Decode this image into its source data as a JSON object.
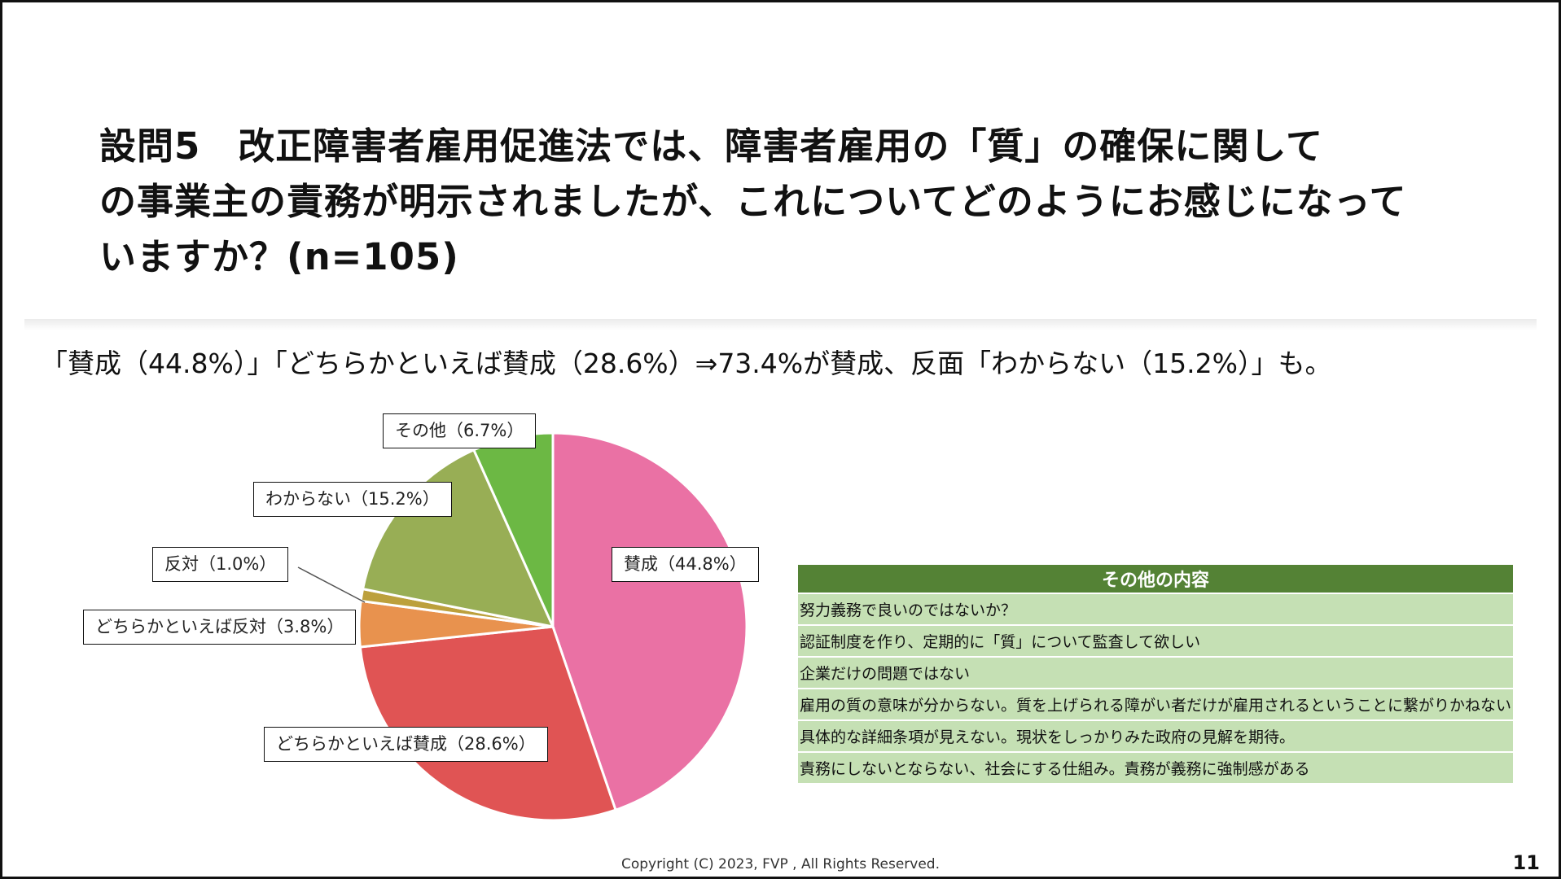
{
  "title_lines": [
    "設問5　改正障害者雇用促進法では、障害者雇用の「質」の確保に関して",
    "の事業主の責務が明示されましたが、これについてどのようにお感じになって",
    "いますか？(n=105)"
  ],
  "summary": "「賛成（44.8%）」「どちらかといえば賛成（28.6%）⇒73.4%が賛成、反面「わからない（15.2%）」も。",
  "colors": {
    "agree": "#ea71a4",
    "somewhat_agree": "#e05454",
    "somewhat_disagree": "#e8924e",
    "disagree": "#bca03c",
    "dont_know": "#98ae55",
    "other": "#6cb844",
    "table_header": "#548235",
    "table_row": "#c5e0b4"
  },
  "chart_data": {
    "type": "pie",
    "title": "",
    "n": 105,
    "slices": [
      {
        "key": "agree",
        "label": "賛成（44.8%）",
        "category": "賛成",
        "value": 44.8,
        "color": "#ea71a4"
      },
      {
        "key": "somewhat_agree",
        "label": "どちらかといえば賛成（28.6%）",
        "category": "どちらかといえば賛成",
        "value": 28.6,
        "color": "#e05454"
      },
      {
        "key": "somewhat_disagree",
        "label": "どちらかといえば反対（3.8%）",
        "category": "どちらかといえば反対",
        "value": 3.8,
        "color": "#e8924e"
      },
      {
        "key": "disagree",
        "label": "反対（1.0%）",
        "category": "反対",
        "value": 1.0,
        "color": "#bca03c"
      },
      {
        "key": "dont_know",
        "label": "わからない（15.2%）",
        "category": "わからない",
        "value": 15.2,
        "color": "#98ae55"
      },
      {
        "key": "other",
        "label": "その他（6.7%）",
        "category": "その他",
        "value": 6.7,
        "color": "#6cb844"
      }
    ],
    "start_angle": "12 o'clock",
    "direction": "clockwise"
  },
  "other_table": {
    "header": "その他の内容",
    "rows": [
      "努力義務で良いのではないか？",
      "認証制度を作り、定期的に「質」について監査して欲しい",
      "企業だけの問題ではない",
      "雇用の質の意味が分からない。質を上げられる障がい者だけが雇用されるということに繋がりかねない",
      "具体的な詳細条項が見えない。現状をしっかりみた政府の見解を期待。",
      "責務にしないとならない、社会にする仕組み。責務が義務に強制感がある"
    ]
  },
  "footer": "Copyright (C) 2023, FVP , All Rights Reserved.",
  "page_number": "11"
}
